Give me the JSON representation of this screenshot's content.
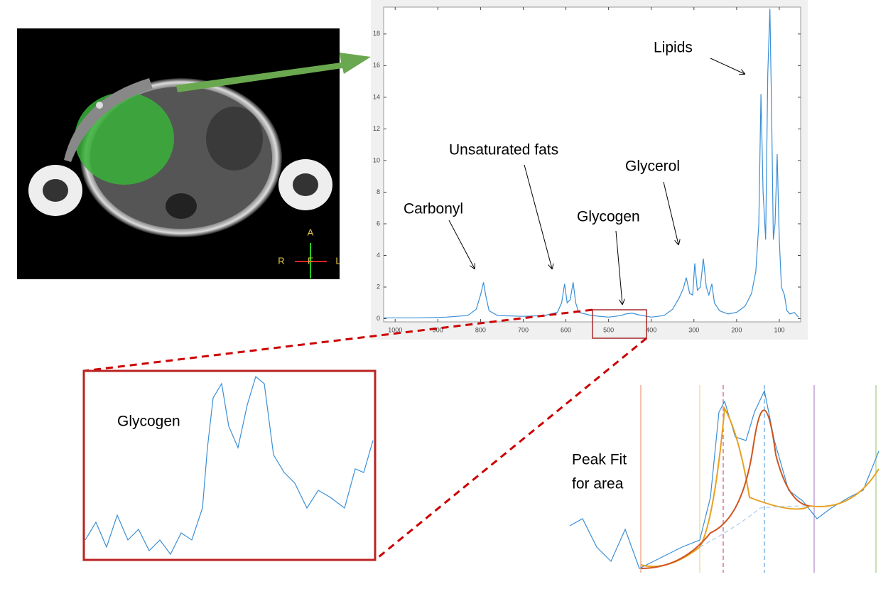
{
  "chart_data": {
    "type": "line",
    "x": [
      1027,
      950,
      880,
      830,
      810,
      800,
      793,
      788,
      780,
      760,
      700,
      650,
      620,
      610,
      603,
      597,
      590,
      583,
      577,
      570,
      540,
      500,
      470,
      460,
      445,
      430,
      400,
      370,
      350,
      335,
      325,
      318,
      310,
      303,
      298,
      292,
      285,
      278,
      271,
      265,
      258,
      252,
      240,
      220,
      200,
      180,
      165,
      155,
      148,
      143,
      138,
      132,
      127,
      122,
      118,
      114,
      110,
      105,
      100,
      95,
      88,
      82,
      75,
      65,
      55
    ],
    "series": [
      {
        "color": "#3a8fd6",
        "values": [
          0.05,
          0.05,
          0.1,
          0.2,
          0.6,
          1.5,
          2.3,
          1.5,
          0.5,
          0.2,
          0.15,
          0.2,
          0.4,
          1.0,
          2.2,
          1.0,
          1.2,
          2.3,
          1.0,
          0.4,
          0.2,
          0.1,
          0.2,
          0.3,
          0.35,
          0.25,
          0.1,
          0.2,
          0.6,
          1.3,
          1.9,
          2.6,
          1.6,
          1.5,
          3.5,
          1.8,
          2.0,
          3.8,
          2.0,
          1.5,
          2.2,
          1.0,
          0.5,
          0.3,
          0.4,
          0.8,
          1.6,
          3.0,
          6.0,
          14.2,
          8.0,
          5.0,
          15.5,
          19.6,
          13.0,
          5.0,
          6.0,
          10.4,
          5.0,
          2.0,
          1.5,
          0.5,
          0.3,
          0.4,
          0.1
        ]
      }
    ],
    "xlim": [
      1027,
      50
    ],
    "xticks": [
      1000,
      900,
      800,
      700,
      600,
      500,
      400,
      300,
      200,
      100
    ],
    "ylim": [
      -0.2,
      19.7
    ],
    "yticks": [
      0,
      2,
      4,
      6,
      8,
      10,
      12,
      14,
      16,
      18
    ],
    "annotations": [
      "Lipids",
      "Unsaturated fats",
      "Carbonyl",
      "Glycogen",
      "Glycerol"
    ]
  },
  "mri": {
    "orientation_labels": [
      "A",
      "R",
      "F",
      "L"
    ]
  },
  "inset": {
    "label": "Glycogen"
  },
  "peak_fit": {
    "label_lines": [
      "Peak Fit",
      "for area"
    ]
  }
}
